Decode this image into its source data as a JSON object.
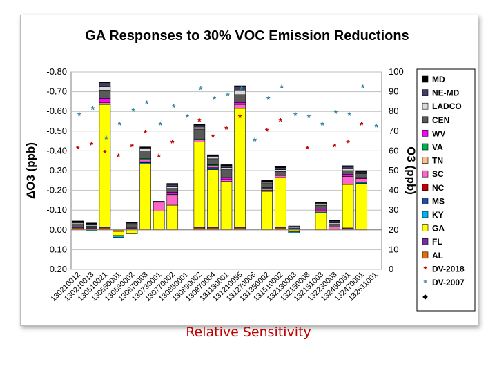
{
  "subtitle": "Relative Sensitivity",
  "chart_data": {
    "type": "bar",
    "title": "GA Responses to 30% VOC Emission Reductions",
    "ylabel": "ΔO3 (ppb)",
    "y2label": "O3 (ppb)",
    "ylim": [
      0.2,
      -0.8
    ],
    "y2lim": [
      0,
      100
    ],
    "left_ticks": [
      "-0.80",
      "-0.70",
      "-0.60",
      "-0.50",
      "-0.40",
      "-0.30",
      "-0.20",
      "-0.10",
      "0.00",
      "0.10",
      "0.20"
    ],
    "right_ticks": [
      "100",
      "90",
      "80",
      "70",
      "60",
      "50",
      "40",
      "30",
      "20",
      "10",
      "0"
    ],
    "grid": true,
    "legend_position": "right",
    "categories": [
      "130210012",
      "130210013",
      "130510021",
      "130550001",
      "130590002",
      "130670003",
      "130730001",
      "130770002",
      "130850001",
      "130890002",
      "130970004",
      "131130001",
      "131210055",
      "131270006",
      "131350002",
      "131510002",
      "132130003",
      "132150008",
      "132151003",
      "132230003",
      "132450091",
      "132470001",
      "132611001"
    ],
    "stack_series": [
      {
        "name": "AL",
        "color": "#e36c09",
        "values": [
          -0.01,
          -0.005,
          -0.01,
          0.008,
          -0.005,
          -0.005,
          -0.005,
          -0.005,
          0,
          -0.01,
          -0.01,
          -0.005,
          -0.01,
          0,
          -0.005,
          -0.01,
          0,
          0,
          -0.005,
          -0.005,
          -0.005,
          -0.005,
          0
        ]
      },
      {
        "name": "FL",
        "color": "#7030a0",
        "values": [
          -0.005,
          -0.005,
          -0.005,
          0,
          -0.005,
          0,
          0,
          0,
          0,
          -0.005,
          -0.005,
          0,
          -0.005,
          0,
          0,
          -0.005,
          0,
          0,
          0,
          0,
          -0.005,
          0,
          0
        ]
      },
      {
        "name": "GA",
        "color": "#ffff00",
        "values": [
          0,
          0,
          -0.62,
          0.02,
          0.02,
          -0.33,
          -0.09,
          -0.12,
          0,
          -0.43,
          -0.29,
          -0.24,
          -0.6,
          0,
          -0.19,
          -0.25,
          0.01,
          0,
          -0.08,
          0,
          -0.22,
          -0.23,
          0
        ]
      },
      {
        "name": "KY",
        "color": "#00b0f0",
        "values": [
          0,
          0,
          0,
          0.01,
          0,
          -0.005,
          0,
          0,
          0,
          0,
          -0.005,
          0,
          0,
          0,
          -0.005,
          0,
          0.005,
          0,
          -0.005,
          0,
          0,
          -0.005,
          0
        ]
      },
      {
        "name": "MS",
        "color": "#1f4e9a",
        "values": [
          0,
          0,
          0,
          0,
          0,
          -0.005,
          0,
          0,
          0,
          0,
          -0.005,
          0,
          0,
          0,
          0,
          0,
          0,
          0,
          0,
          0,
          0,
          0,
          0
        ]
      },
      {
        "name": "NC",
        "color": "#c00000",
        "values": [
          0,
          0,
          0,
          0,
          0,
          0,
          0,
          0,
          0,
          0,
          0,
          0,
          0,
          0,
          0,
          0,
          0,
          0,
          0,
          0,
          0,
          0,
          0
        ]
      },
      {
        "name": "SC",
        "color": "#ff66cc",
        "values": [
          0,
          0,
          -0.01,
          0,
          0,
          -0.01,
          -0.045,
          -0.05,
          0,
          -0.01,
          -0.01,
          -0.01,
          -0.02,
          0,
          -0.01,
          -0.01,
          0,
          0,
          -0.01,
          -0.01,
          -0.04,
          -0.02,
          0
        ]
      },
      {
        "name": "TN",
        "color": "#fac090",
        "values": [
          0,
          0,
          0,
          0,
          0,
          0,
          0,
          0,
          0,
          0,
          0,
          0,
          0,
          0,
          0,
          0,
          0,
          0,
          0,
          0,
          0,
          0,
          0
        ]
      },
      {
        "name": "VA",
        "color": "#00b050",
        "values": [
          0,
          0.005,
          0,
          0,
          0,
          -0.005,
          0,
          -0.005,
          0,
          -0.005,
          -0.005,
          0,
          0,
          0,
          -0.005,
          0,
          0,
          0,
          0,
          0,
          0,
          0,
          0
        ]
      },
      {
        "name": "WV",
        "color": "#ff00ff",
        "values": [
          0,
          0,
          -0.02,
          0,
          0,
          0,
          0,
          -0.01,
          0,
          0,
          0,
          -0.01,
          -0.01,
          0,
          0,
          0,
          0,
          0,
          -0.005,
          0,
          -0.01,
          -0.005,
          0
        ]
      },
      {
        "name": "CEN",
        "color": "#595959",
        "values": [
          -0.015,
          -0.01,
          -0.04,
          0,
          -0.015,
          -0.04,
          -0.005,
          -0.02,
          0,
          -0.05,
          -0.03,
          -0.04,
          -0.04,
          0,
          -0.02,
          -0.02,
          -0.01,
          0,
          -0.02,
          -0.01,
          -0.02,
          -0.02,
          0
        ]
      },
      {
        "name": "LADCO",
        "color": "#d9d9d9",
        "values": [
          -0.005,
          -0.005,
          -0.02,
          0,
          -0.005,
          -0.01,
          0,
          -0.01,
          0,
          -0.01,
          -0.01,
          -0.01,
          -0.02,
          0,
          -0.005,
          -0.01,
          -0.005,
          0,
          -0.005,
          -0.01,
          -0.01,
          -0.005,
          0
        ]
      },
      {
        "name": "NE-MD",
        "color": "#403d68",
        "values": [
          -0.005,
          -0.005,
          -0.02,
          0,
          -0.005,
          -0.005,
          0,
          -0.01,
          0,
          -0.01,
          -0.005,
          -0.01,
          -0.02,
          0,
          -0.005,
          -0.01,
          -0.005,
          0,
          -0.005,
          -0.01,
          -0.01,
          -0.005,
          0
        ]
      },
      {
        "name": "MD",
        "color": "#000000",
        "values": [
          -0.005,
          -0.005,
          -0.005,
          0,
          -0.005,
          -0.005,
          0,
          -0.005,
          0,
          -0.005,
          -0.005,
          -0.005,
          -0.005,
          0,
          -0.005,
          -0.005,
          0,
          0,
          -0.005,
          -0.005,
          -0.005,
          -0.005,
          0
        ]
      }
    ],
    "marker_series": [
      {
        "name": "DV-2018",
        "symbol": "*",
        "color": "#c00000",
        "values": [
          61,
          63,
          59,
          57,
          62,
          69,
          57,
          64,
          null,
          75,
          67,
          71,
          77,
          null,
          70,
          75,
          null,
          61,
          null,
          62,
          64,
          73,
          null
        ]
      },
      {
        "name": "DV-2007",
        "symbol": "*",
        "color": "#31859c",
        "values": [
          78,
          81,
          66,
          73,
          80,
          84,
          73,
          82,
          77,
          91,
          86,
          88,
          91,
          65,
          86,
          92,
          78,
          77,
          73,
          79,
          78,
          92,
          72
        ]
      }
    ],
    "legend_extra": "◆"
  }
}
